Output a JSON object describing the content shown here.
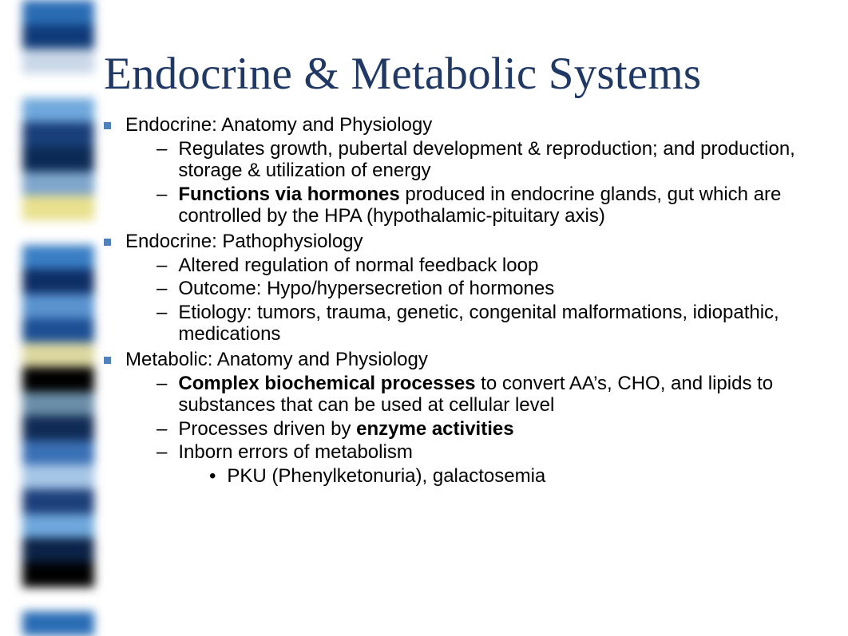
{
  "title": "Endocrine & Metabolic Systems",
  "colors": {
    "title": "#203864",
    "bullet": "#4f81bd",
    "text": "#000000",
    "background": "#ffffff"
  },
  "typography": {
    "title_font": "Times New Roman",
    "title_size_pt": 44,
    "body_font": "Arial",
    "body_size_pt": 18
  },
  "stripe_colors": [
    "#2a6db5",
    "#0f3a78",
    "#c9d7e8",
    "#ffffff",
    "#6fa8dc",
    "#1a3f7a",
    "#0b2a55",
    "#7fa6cc",
    "#e8e08e",
    "#ffffff",
    "#3a7fc4",
    "#0e2e66",
    "#5a93cf",
    "#1c4f94",
    "#dcd7a0",
    "#000000",
    "#6b8ea8",
    "#102b55",
    "#3a70b5",
    "#a6c6e6",
    "#1d3f7a",
    "#6fa8dc",
    "#0c2246",
    "#000000",
    "#ffffff",
    "#2a6db5"
  ],
  "sections": [
    {
      "heading": "Endocrine: Anatomy and Physiology",
      "items": [
        {
          "plain": "Regulates growth, pubertal development & reproduction; and production, storage & utilization of energy"
        },
        {
          "bold_lead": "Functions via hormones",
          "rest": " produced in endocrine glands, gut which are controlled by the HPA (hypothalamic-pituitary axis)"
        }
      ]
    },
    {
      "heading": "Endocrine: Pathophysiology",
      "items": [
        {
          "plain": "Altered regulation of normal feedback loop"
        },
        {
          "plain": "Outcome: Hypo/hypersecretion of hormones"
        },
        {
          "plain": "Etiology: tumors, trauma, genetic, congenital malformations,  idiopathic, medications"
        }
      ]
    },
    {
      "heading": "Metabolic: Anatomy and Physiology",
      "items": [
        {
          "bold_lead": "Complex biochemical processes",
          "rest": " to convert AA’s, CHO, and lipids to substances that can be used at cellular level"
        },
        {
          "pre": "Processes driven by ",
          "bold_tail": "enzyme activities"
        },
        {
          "plain": "Inborn errors of metabolism",
          "children": [
            {
              "plain": "PKU (Phenylketonuria), galactosemia"
            }
          ]
        }
      ]
    }
  ]
}
